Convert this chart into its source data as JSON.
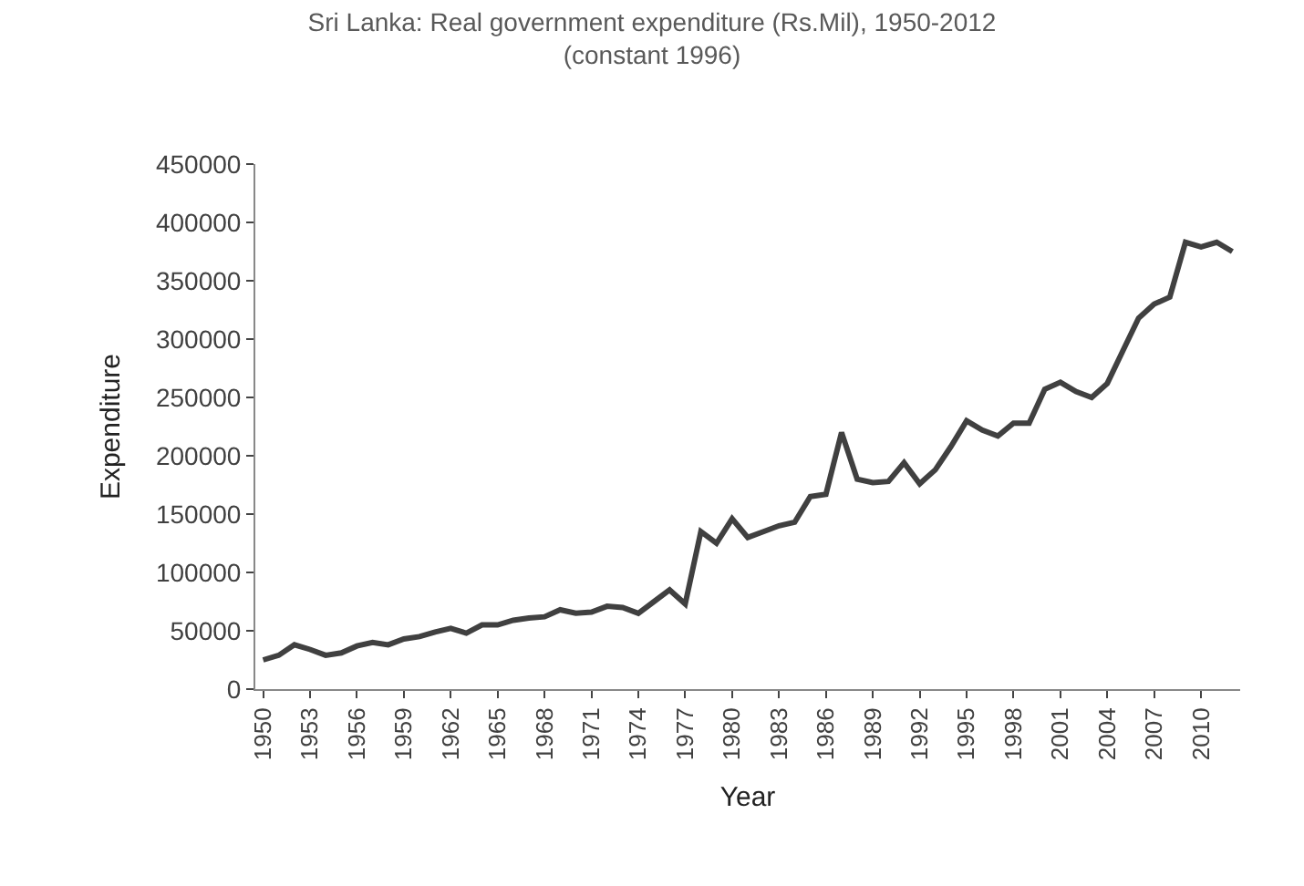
{
  "chart_data": {
    "type": "line",
    "title": "Sri Lanka: Real government expenditure (Rs.Mil), 1950-2012\n(constant 1996)",
    "xlabel": "Year",
    "ylabel": "Expenditure",
    "categories": [
      "1950",
      null,
      null,
      "1953",
      null,
      null,
      "1956",
      null,
      null,
      "1959",
      null,
      null,
      "1962",
      null,
      null,
      "1965",
      null,
      null,
      "1968",
      null,
      null,
      "1971",
      null,
      null,
      "1974",
      null,
      null,
      "1977",
      null,
      null,
      "1980",
      null,
      null,
      "1983",
      null,
      null,
      "1986",
      null,
      null,
      "1989",
      null,
      null,
      "1992",
      null,
      null,
      "1995",
      null,
      null,
      "1998",
      null,
      null,
      "2001",
      null,
      null,
      "2004",
      null,
      null,
      "2007",
      null,
      null,
      "2010",
      null,
      null
    ],
    "series": [
      {
        "color": "#404040",
        "values": [
          25000,
          29000,
          38000,
          34000,
          29000,
          31000,
          37000,
          40000,
          38000,
          43000,
          45000,
          49000,
          52000,
          48000,
          55000,
          55000,
          59000,
          61000,
          62000,
          68000,
          65000,
          66000,
          71000,
          70000,
          65000,
          75000,
          85000,
          73000,
          135000,
          125000,
          146000,
          130000,
          135000,
          140000,
          143000,
          165000,
          167000,
          220000,
          180000,
          177000,
          178000,
          194000,
          176000,
          188000,
          208000,
          230000,
          222000,
          217000,
          228000,
          228000,
          257000,
          263000,
          255000,
          250000,
          262000,
          290000,
          318000,
          330000,
          336000,
          383000,
          379000,
          383000,
          375000
        ]
      }
    ],
    "ylim": [
      0,
      450000
    ],
    "yticks": [
      0,
      50000,
      100000,
      150000,
      200000,
      250000,
      300000,
      350000,
      400000,
      450000
    ],
    "marker": "none",
    "line_style": "solid"
  }
}
